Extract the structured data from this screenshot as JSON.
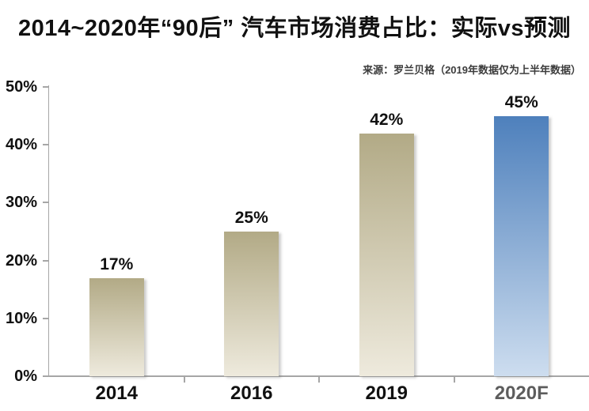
{
  "title": "2014~2020年“90后” 汽车市场消费占比：实际vs预测",
  "source_note": "来源：罗兰贝格（2019年数据仅为上半年数据）",
  "chart_data": {
    "type": "bar",
    "title": "2014~2020年“90后” 汽车市场消费占比：实际vs预测",
    "categories": [
      "2014",
      "2016",
      "2019",
      "2020F"
    ],
    "values": [
      17,
      25,
      42,
      45
    ],
    "bar_labels": [
      "17%",
      "25%",
      "42%",
      "45%"
    ],
    "bar_styles": [
      "actual",
      "actual",
      "actual",
      "forecast"
    ],
    "xlabel": "",
    "ylabel": "",
    "ylim": [
      0,
      50
    ],
    "ytick_step": 10,
    "ytick_labels": [
      "0%",
      "10%",
      "20%",
      "30%",
      "40%",
      "50%"
    ],
    "grid": false,
    "legend": "none",
    "annotations": [],
    "colors": {
      "actual_top": "#b2aa86",
      "actual_bottom": "#eeeadd",
      "forecast_top": "#4e80bc",
      "forecast_bottom": "#cdddef",
      "axis": "#a6a6a6",
      "text": "#111111"
    }
  }
}
